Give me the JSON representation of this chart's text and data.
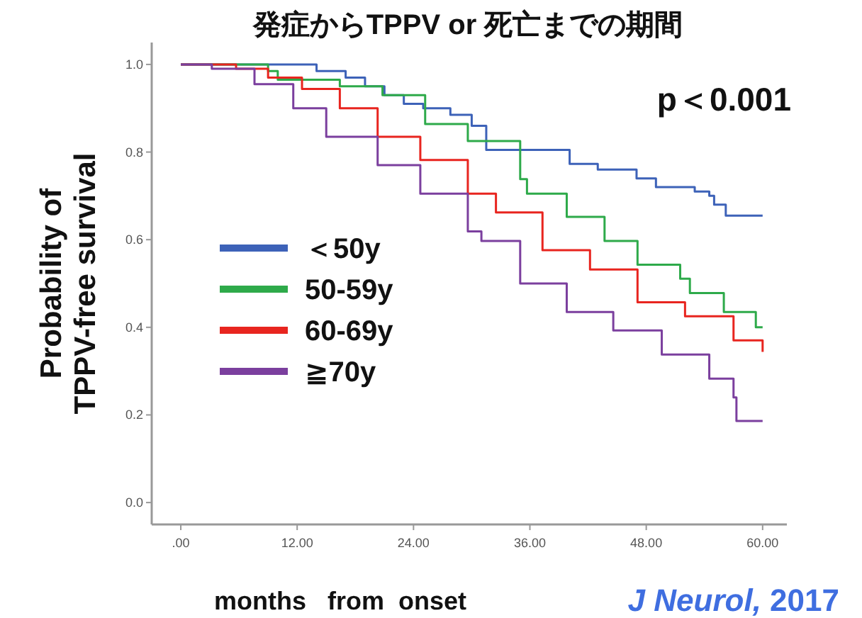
{
  "chart_data": {
    "type": "step",
    "title": "発症からTPPV or 死亡までの期間",
    "xlabel": "months   from  onset",
    "ylabel": "Probability of TPPV-free survival",
    "xlim": [
      -3,
      62.5
    ],
    "ylim": [
      -0.05,
      1.05
    ],
    "xticks": [
      {
        "value": 0,
        "label": ".00"
      },
      {
        "value": 12,
        "label": "12.00"
      },
      {
        "value": 24,
        "label": "24.00"
      },
      {
        "value": 36,
        "label": "36.00"
      },
      {
        "value": 48,
        "label": "48.00"
      },
      {
        "value": 60,
        "label": "60.00"
      }
    ],
    "yticks": [
      {
        "value": 0,
        "label": "0.0"
      },
      {
        "value": 0.2,
        "label": "0.2"
      },
      {
        "value": 0.4,
        "label": "0.4"
      },
      {
        "value": 0.6,
        "label": "0.6"
      },
      {
        "value": 0.8,
        "label": "0.8"
      },
      {
        "value": 1,
        "label": "1.0"
      }
    ],
    "legend": "left",
    "grid": false,
    "line_style": "solid",
    "annotations": [
      "p＜0.001",
      "*J Neurol,* 2017"
    ],
    "series": [
      {
        "name": "＜50y",
        "color": "#3d62b8",
        "x": [
          0,
          14,
          17,
          19,
          21,
          23,
          25,
          27.8,
          30,
          31.5,
          32.2,
          40.1,
          43,
          47,
          49,
          53,
          54.5,
          55,
          56.2,
          60
        ],
        "values": [
          1,
          0.985,
          0.97,
          0.95,
          0.93,
          0.91,
          0.9,
          0.885,
          0.86,
          0.805,
          0.805,
          0.773,
          0.76,
          0.74,
          0.72,
          0.71,
          0.7,
          0.68,
          0.655,
          0.655
        ]
      },
      {
        "name": "50-59y",
        "color": "#2eaa4a",
        "x": [
          0,
          9,
          10,
          16.4,
          20.8,
          25.2,
          29.6,
          35,
          35.7,
          39.8,
          43.7,
          47.1,
          51.5,
          52.5,
          56,
          59.3,
          60
        ],
        "values": [
          1,
          0.985,
          0.965,
          0.95,
          0.93,
          0.864,
          0.825,
          0.738,
          0.705,
          0.652,
          0.597,
          0.543,
          0.511,
          0.478,
          0.435,
          0.4,
          0.4
        ]
      },
      {
        "name": "60-69y",
        "color": "#e8251f",
        "x": [
          0,
          5.7,
          9,
          12.5,
          16.4,
          20.3,
          24.7,
          29.6,
          32.5,
          37.3,
          42.2,
          47.1,
          52,
          57,
          60
        ],
        "values": [
          1,
          0.99,
          0.97,
          0.944,
          0.9,
          0.835,
          0.782,
          0.705,
          0.662,
          0.576,
          0.532,
          0.457,
          0.425,
          0.37,
          0.344
        ]
      },
      {
        "name": "≧70y",
        "color": "#7b3f9e",
        "x": [
          0,
          3.2,
          7.6,
          11.6,
          15,
          20.3,
          24.7,
          29.6,
          31,
          35,
          39.8,
          44.6,
          49.6,
          54.5,
          57,
          57.3,
          60
        ],
        "values": [
          1,
          0.99,
          0.955,
          0.9,
          0.835,
          0.77,
          0.705,
          0.619,
          0.597,
          0.5,
          0.435,
          0.393,
          0.338,
          0.283,
          0.24,
          0.186,
          0.186
        ]
      }
    ]
  }
}
